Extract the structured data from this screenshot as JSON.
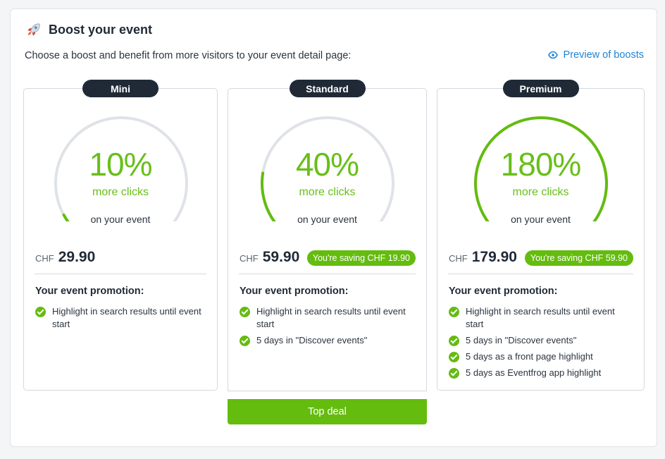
{
  "header": {
    "title": "Boost your event",
    "subtitle": "Choose a boost and benefit from more visitors to your event detail page:",
    "preview_link": "Preview of boosts",
    "icon": "rocket-icon"
  },
  "colors": {
    "accent_green": "#64bc0f",
    "dark_badge": "#1f2a36",
    "link_blue": "#1f83d6",
    "track_gray": "#dfe3e8"
  },
  "plans": [
    {
      "name": "Mini",
      "percent": "10%",
      "fill_fraction": 0.06,
      "more_clicks": "more clicks",
      "on_event": "on your event",
      "currency": "CHF",
      "price": "29.90",
      "saving": "",
      "promo_heading": "Your event promotion:",
      "features": [
        "Highlight in search results until event start"
      ]
    },
    {
      "name": "Standard",
      "percent": "40%",
      "fill_fraction": 0.2,
      "more_clicks": "more clicks",
      "on_event": "on your event",
      "currency": "CHF",
      "price": "59.90",
      "saving": "You're saving CHF 19.90",
      "promo_heading": "Your event promotion:",
      "features": [
        "Highlight in search results until event start",
        "5 days in \"Discover events\""
      ]
    },
    {
      "name": "Premium",
      "percent": "180%",
      "fill_fraction": 1.0,
      "more_clicks": "more clicks",
      "on_event": "on your event",
      "currency": "CHF",
      "price": "179.90",
      "saving": "You're saving CHF 59.90",
      "promo_heading": "Your event promotion:",
      "features": [
        "Highlight in search results until event start",
        "5 days in \"Discover events\"",
        "5 days as a front page highlight",
        "5 days as Eventfrog app highlight"
      ]
    }
  ],
  "top_deal_label": "Top deal"
}
